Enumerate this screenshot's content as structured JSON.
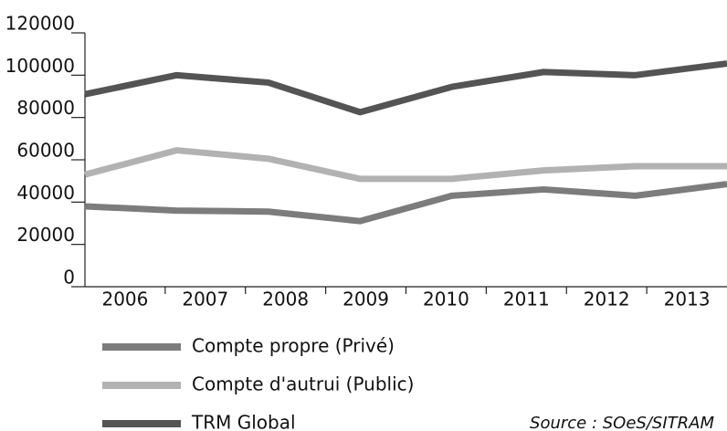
{
  "chart_data": {
    "type": "line",
    "categories": [
      "2006",
      "2007",
      "2008",
      "2009",
      "2010",
      "2011",
      "2012",
      "2013"
    ],
    "series": [
      {
        "name": "Compte propre (Privé)",
        "color": "#7c7c7c",
        "values": [
          38000,
          36000,
          35500,
          31000,
          43000,
          46000,
          43000,
          48500
        ]
      },
      {
        "name": "Compte d'autrui (Public)",
        "color": "#b2b2b2",
        "values": [
          53000,
          64500,
          60500,
          51000,
          51000,
          55000,
          57000,
          57000
        ]
      },
      {
        "name": "TRM Global",
        "color": "#545454",
        "values": [
          91000,
          100000,
          96500,
          82500,
          94500,
          101500,
          100000,
          105500
        ]
      }
    ],
    "ylim": [
      0,
      120000
    ],
    "yticks": [
      0,
      20000,
      40000,
      60000,
      80000,
      100000,
      120000
    ],
    "source": "Source : SOeS/SITRAM"
  }
}
